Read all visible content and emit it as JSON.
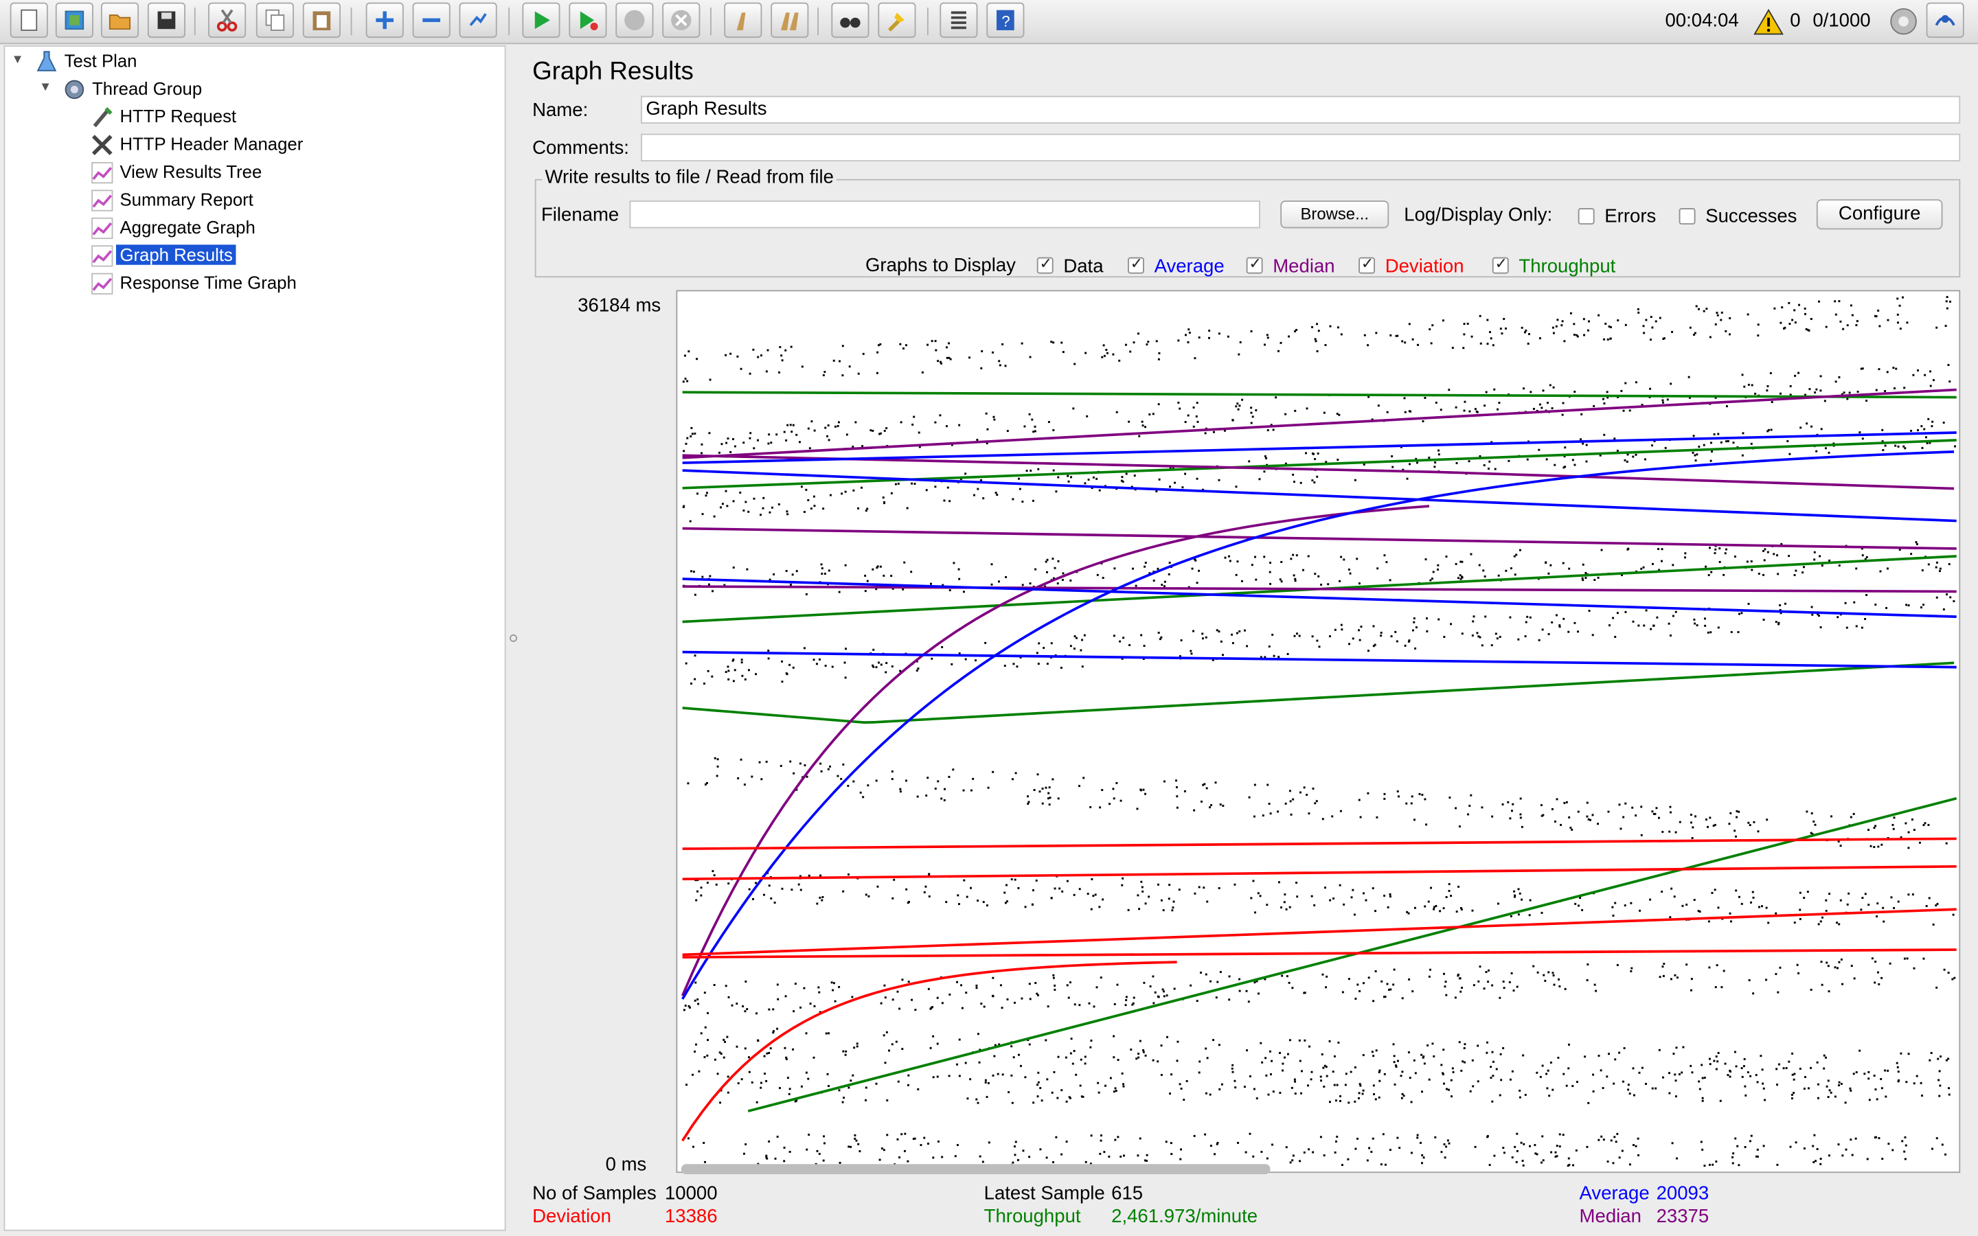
{
  "toolbar": {
    "buttons": [
      {
        "name": "new-icon"
      },
      {
        "name": "templates-icon"
      },
      {
        "name": "open-icon"
      },
      {
        "name": "save-icon"
      },
      {
        "name": "cut-icon"
      },
      {
        "name": "copy-icon"
      },
      {
        "name": "paste-icon"
      },
      {
        "name": "expand-icon"
      },
      {
        "name": "collapse-icon"
      },
      {
        "name": "toggle-icon"
      },
      {
        "name": "start-icon"
      },
      {
        "name": "start-no-pauses-icon"
      },
      {
        "name": "stop-icon"
      },
      {
        "name": "shutdown-icon"
      },
      {
        "name": "clear-icon"
      },
      {
        "name": "clear-all-icon"
      },
      {
        "name": "search-icon"
      },
      {
        "name": "reset-search-icon"
      },
      {
        "name": "function-helper-icon"
      },
      {
        "name": "help-icon"
      }
    ],
    "elapsed": "00:04:04",
    "warning_count": "0",
    "threads": "0/1000"
  },
  "tree": {
    "items": [
      {
        "label": "Test Plan",
        "icon": "flask-icon",
        "expanded": true
      },
      {
        "label": "Thread Group",
        "icon": "gear-icon",
        "expanded": true
      },
      {
        "label": "HTTP Request",
        "icon": "pipette-icon"
      },
      {
        "label": "HTTP Header Manager",
        "icon": "tools-icon"
      },
      {
        "label": "View Results Tree",
        "icon": "graph-listener-icon"
      },
      {
        "label": "Summary Report",
        "icon": "graph-listener-icon"
      },
      {
        "label": "Aggregate Graph",
        "icon": "graph-listener-icon"
      },
      {
        "label": "Graph Results",
        "icon": "graph-listener-icon",
        "selected": true
      },
      {
        "label": "Response Time Graph",
        "icon": "graph-listener-icon"
      }
    ]
  },
  "panel": {
    "title": "Graph Results",
    "name_label": "Name:",
    "name_value": "Graph Results",
    "comments_label": "Comments:",
    "comments_value": "",
    "file_group_label": "Write results to file / Read from file",
    "filename_label": "Filename",
    "filename_value": "",
    "browse_label": "Browse...",
    "log_display_label": "Log/Display Only:",
    "errors_label": "Errors",
    "successes_label": "Successes",
    "configure_label": "Configure",
    "errors_checked": false,
    "successes_checked": false
  },
  "graphs_to_display": {
    "label": "Graphs to Display",
    "options": [
      {
        "label": "Data",
        "checked": true,
        "color": "#000000"
      },
      {
        "label": "Average",
        "checked": true,
        "color": "#0000ff"
      },
      {
        "label": "Median",
        "checked": true,
        "color": "#800080"
      },
      {
        "label": "Deviation",
        "checked": true,
        "color": "#ff0000"
      },
      {
        "label": "Throughput",
        "checked": true,
        "color": "#008000"
      }
    ]
  },
  "chart_data": {
    "type": "scatter",
    "y_top_label": "36184  ms",
    "y_bottom_label": "0  ms",
    "ylim": [
      0,
      36184
    ],
    "series_colors": {
      "data": "#000000",
      "average": "#0000ff",
      "median": "#800080",
      "deviation": "#ff0000",
      "throughput": "#008000"
    }
  },
  "stats": {
    "samples_label": "No of Samples",
    "samples_value": "10000",
    "latest_label": "Latest Sample",
    "latest_value": "615",
    "average_label": "Average",
    "average_value": "20093",
    "deviation_label": "Deviation",
    "deviation_value": "13386",
    "throughput_label": "Throughput",
    "throughput_value": "2,461.973/minute",
    "median_label": "Median",
    "median_value": "23375"
  }
}
